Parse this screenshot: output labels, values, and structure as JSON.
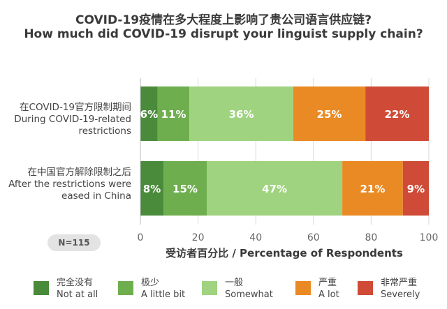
{
  "title": {
    "zh": "COVID-19疫情在多大程度上影响了贵公司语言供应链?",
    "en": "How much did COVID-19 disrupt your linguist supply chain?"
  },
  "categories": [
    {
      "zh": "在COVID-19官方限制期间",
      "en1": "During COVID-19-related",
      "en2": "restrictions"
    },
    {
      "zh": "在中国官方解除限制之后",
      "en1": "After the restrictions were",
      "en2": "eased in China"
    }
  ],
  "sample_badge": "N=115",
  "x_axis_label": "受访者百分比 / Percentage of Respondents",
  "legend": [
    {
      "zh": "完全没有",
      "en": "Not at all",
      "color": "#4a8a3b"
    },
    {
      "zh": "极少",
      "en": "A little bit",
      "color": "#6fae4f"
    },
    {
      "zh": "一般",
      "en": "Somewhat",
      "color": "#9fd37f"
    },
    {
      "zh": "严重",
      "en": "A lot",
      "color": "#ea8a24"
    },
    {
      "zh": "非常严重",
      "en": "Severely",
      "color": "#cf4b37"
    }
  ],
  "chart_data": {
    "type": "bar",
    "orientation": "horizontal",
    "stacked": true,
    "categories": [
      "During COVID-19-related restrictions",
      "After the restrictions were eased in China"
    ],
    "series": [
      {
        "name": "Not at all",
        "values": [
          6,
          8
        ],
        "labels": [
          "6%",
          "8%"
        ]
      },
      {
        "name": "A little bit",
        "values": [
          11,
          15
        ],
        "labels": [
          "11%",
          "15%"
        ]
      },
      {
        "name": "Somewhat",
        "values": [
          36,
          47
        ],
        "labels": [
          "36%",
          "47%"
        ]
      },
      {
        "name": "A lot",
        "values": [
          25,
          21
        ],
        "labels": [
          "25%",
          "21%"
        ]
      },
      {
        "name": "Severely",
        "values": [
          22,
          9
        ],
        "labels": [
          "22%",
          "9%"
        ]
      }
    ],
    "xlim": [
      0,
      100
    ],
    "xticks": [
      "0",
      "20",
      "40",
      "60",
      "80",
      "100"
    ],
    "xlabel": "受访者百分比 / Percentage of Respondents",
    "legend_position": "bottom"
  }
}
